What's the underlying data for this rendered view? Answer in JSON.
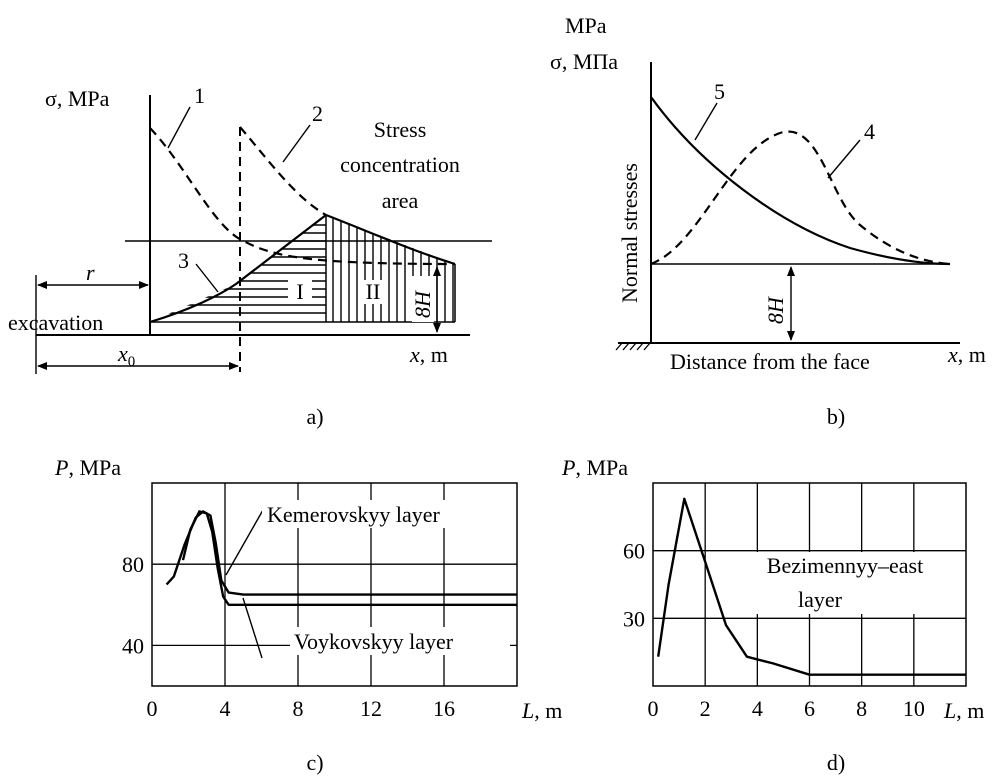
{
  "panels": {
    "a": {
      "caption": "a)",
      "ylabel_sym": "σ",
      "ylabel_unit": ", MPa",
      "xlabel_sym": "x",
      "xlabel_unit": ", m",
      "label_r": "r",
      "label_x0_sym": "x",
      "label_x0_sub": "0",
      "label_excavation": "excavation",
      "label_8H": "8H",
      "label_stress": [
        "Stress",
        "concentration",
        "area"
      ],
      "zone_I": "I",
      "zone_II": "II",
      "curve_labels": [
        "1",
        "2",
        "3"
      ]
    },
    "b": {
      "caption": "b)",
      "unit_top": "MPa",
      "ylabel": "σ, MПа",
      "yaxis_title": "Normal stresses",
      "xaxis_title": "Distance from the face",
      "xlabel_sym": "x",
      "xlabel_unit": ", m",
      "label_8H": "8H",
      "curve_labels": [
        "5",
        "4"
      ]
    },
    "c": {
      "caption": "c)",
      "ylabel_sym": "P",
      "ylabel_unit": ", MPa",
      "xlabel_sym": "L",
      "xlabel_unit": ", m",
      "layer_labels": [
        "Kemerovskyy layer",
        "Voykovskyy layer"
      ]
    },
    "d": {
      "caption": "d)",
      "ylabel_sym": "P",
      "ylabel_unit": ", MPa",
      "xlabel_sym": "L",
      "xlabel_unit": ", m",
      "layer_label": [
        "Bezimennyy–east",
        "layer"
      ]
    }
  },
  "chart_data": [
    {
      "panel": "c",
      "type": "line",
      "xlim": [
        0,
        20
      ],
      "ylim": [
        20,
        120
      ],
      "xticks": [
        0,
        4,
        8,
        12,
        16
      ],
      "yticks": [
        40,
        80
      ],
      "grid": true,
      "series": [
        {
          "name": "Kemerovskyy layer",
          "x": [
            0.8,
            1.2,
            1.8,
            2.4,
            2.8,
            3.2,
            3.5,
            3.8,
            4.2,
            5,
            8,
            12,
            16,
            20
          ],
          "y": [
            70,
            74,
            90,
            103,
            106,
            104,
            90,
            72,
            66,
            65,
            65,
            65,
            65,
            65
          ]
        },
        {
          "name": "Voykovskyy layer",
          "x": [
            1.7,
            2.1,
            2.6,
            3.0,
            3.3,
            3.6,
            3.9,
            4.2,
            5,
            8,
            12,
            16,
            20
          ],
          "y": [
            82,
            97,
            106,
            105,
            96,
            78,
            64,
            60,
            60,
            60,
            60,
            60,
            60
          ]
        }
      ]
    },
    {
      "panel": "d",
      "type": "line",
      "xlim": [
        0,
        12
      ],
      "ylim": [
        0,
        90
      ],
      "xticks": [
        0,
        2,
        4,
        6,
        8,
        10
      ],
      "yticks": [
        30,
        60
      ],
      "grid": true,
      "series": [
        {
          "name": "Bezimennyy–east layer",
          "x": [
            0.2,
            0.6,
            1.2,
            2.0,
            2.8,
            3.6,
            4.6,
            6,
            8,
            12
          ],
          "y": [
            13,
            45,
            83,
            55,
            27,
            13,
            10,
            5,
            5,
            5
          ]
        }
      ]
    }
  ]
}
